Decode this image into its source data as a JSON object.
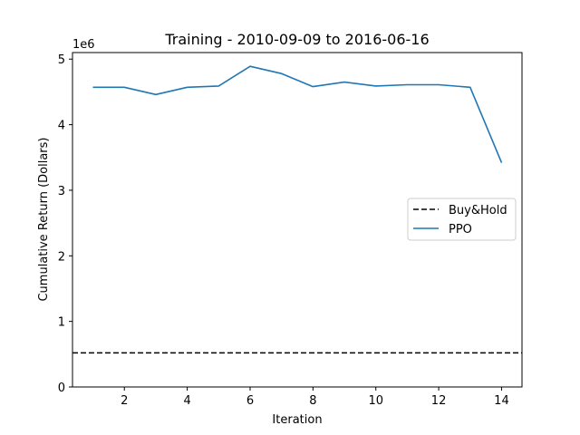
{
  "chart_data": {
    "type": "line",
    "title": "Training - 2010-09-09 to 2016-06-16",
    "xlabel": "Iteration",
    "ylabel": "Cumulative Return (Dollars)",
    "y_scale_note": "1e6",
    "xlim": [
      0.35,
      14.65
    ],
    "ylim": [
      0,
      5.1
    ],
    "x_ticks": [
      2,
      4,
      6,
      8,
      10,
      12,
      14
    ],
    "y_ticks": [
      0,
      1,
      2,
      3,
      4,
      5
    ],
    "grid": false,
    "legend_position": "center-right",
    "series": [
      {
        "name": "Buy&Hold",
        "style": "dashed",
        "color": "#000000",
        "horizontal_value": 0.52
      },
      {
        "name": "PPO",
        "style": "solid",
        "color": "#1f77b4",
        "x": [
          1,
          2,
          3,
          4,
          5,
          6,
          7,
          8,
          9,
          10,
          11,
          12,
          13,
          14
        ],
        "values": [
          4.57,
          4.57,
          4.46,
          4.57,
          4.59,
          4.89,
          4.78,
          4.58,
          4.65,
          4.59,
          4.61,
          4.61,
          4.57,
          3.42
        ]
      }
    ]
  }
}
